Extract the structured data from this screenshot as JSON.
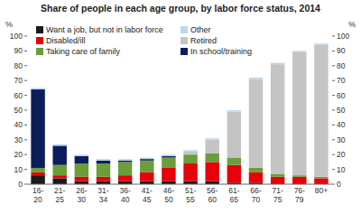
{
  "chart_data": {
    "type": "bar",
    "stacked": true,
    "title": "Share of people in each age group, by labor force status, 2014",
    "y_label": "%",
    "y2_label": "%",
    "categories": [
      "16-20",
      "21-25",
      "26-30",
      "31-34",
      "36-40",
      "41-45",
      "46-50",
      "51-55",
      "56-60",
      "61-65",
      "66-70",
      "71-75",
      "76-79",
      "80+"
    ],
    "series": [
      {
        "name": "Want a job, but not in labor force",
        "color": "#1a1a1a",
        "values": [
          6,
          4,
          2,
          2,
          2,
          2,
          2,
          2,
          2,
          1,
          1,
          0,
          0,
          0
        ]
      },
      {
        "name": "Disabled/ill",
        "color": "#e8000b",
        "values": [
          2,
          2,
          3,
          3,
          4,
          6,
          9,
          12,
          13,
          12,
          7,
          5,
          5,
          4
        ]
      },
      {
        "name": "Taking care of family",
        "color": "#6b9e3a",
        "values": [
          3,
          7,
          9,
          9,
          9,
          8,
          7,
          6,
          6,
          5,
          3,
          2,
          1,
          1
        ]
      },
      {
        "name": "In school/training",
        "color": "#0b1e5b",
        "values": [
          53,
          13,
          5,
          2,
          1,
          1,
          1,
          0,
          0,
          0,
          0,
          0,
          0,
          0
        ]
      },
      {
        "name": "Retired",
        "color": "#c4c4c4",
        "values": [
          0,
          0,
          0,
          0,
          0,
          0,
          0,
          2,
          9,
          31,
          60,
          74,
          83,
          89
        ]
      },
      {
        "name": "Other",
        "color": "#bdd7ee",
        "values": [
          1,
          1,
          1,
          1,
          1,
          1,
          1,
          1,
          1,
          1,
          1,
          1,
          1,
          1
        ]
      }
    ],
    "ylim": [
      0,
      100
    ],
    "yticks": [
      0,
      10,
      20,
      30,
      40,
      50,
      60,
      70,
      80,
      90,
      100
    ],
    "y2lim": [
      0,
      100
    ],
    "y2ticks": [
      0,
      10,
      20,
      30,
      40,
      50,
      60,
      70,
      80,
      90,
      100
    ],
    "legend": "top-left",
    "grid": false
  }
}
